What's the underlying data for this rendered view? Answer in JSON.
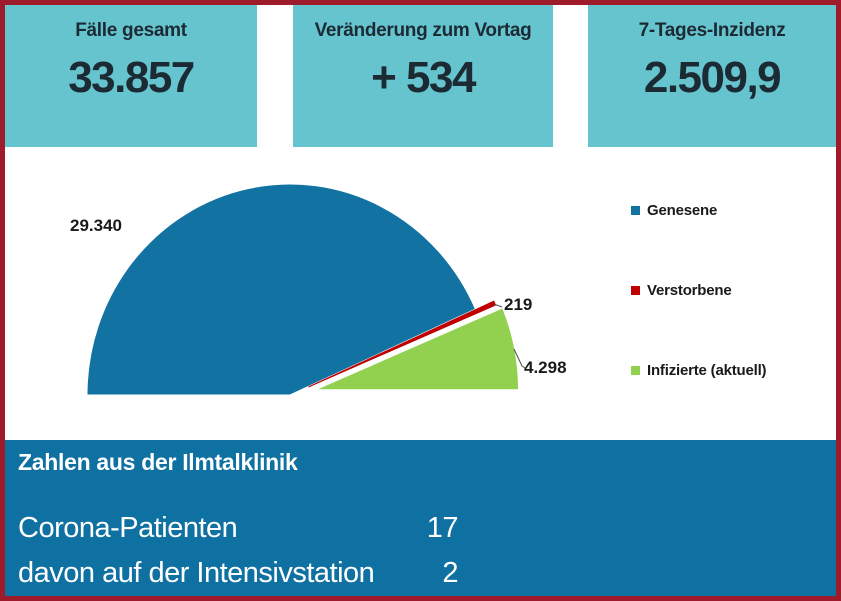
{
  "colors": {
    "frame_border": "#9e1b2b",
    "card_bg": "#66c4cf",
    "panel_bg": "#0f70a2",
    "text_dark": "#1b2a33",
    "text_light": "#ffffff"
  },
  "cards": [
    {
      "title": "Fälle gesamt",
      "value": "33.857"
    },
    {
      "title": "Veränderung zum Vortag",
      "value": "+ 534"
    },
    {
      "title": "7-Tages-Inzidenz",
      "value": "2.509,9"
    }
  ],
  "chart_data": {
    "type": "pie",
    "variant": "half-pie-exploded",
    "categories": [
      "Genesene",
      "Verstorbene",
      "Infizierte (aktuell)"
    ],
    "values": [
      29340,
      219,
      4298
    ],
    "value_labels": [
      "29.340",
      "219",
      "4.298"
    ],
    "colors": [
      "#1272a2",
      "#c00000",
      "#92d050"
    ],
    "total": 33857,
    "start_angle_deg": 180,
    "sweep_deg": 180,
    "legend_position": "right",
    "title": ""
  },
  "clinic": {
    "header": "Zahlen aus der Ilmtalklinik",
    "rows": [
      {
        "label": "Corona-Patienten",
        "value": "17"
      },
      {
        "label": "davon auf der Intensivstation",
        "value": "2"
      }
    ]
  }
}
